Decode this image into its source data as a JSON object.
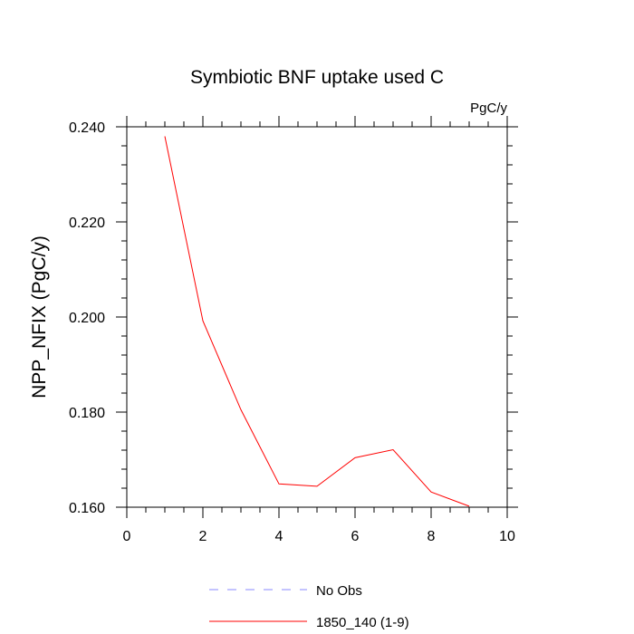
{
  "chart_data": {
    "type": "line",
    "title": "Symbiotic BNF uptake used C",
    "units_label": "PgC/y",
    "xlabel": "",
    "ylabel": "NPP_NFIX  (PgC/y)",
    "xlim": [
      0,
      10
    ],
    "ylim": [
      0.16,
      0.24
    ],
    "xticks": [
      0,
      2,
      4,
      6,
      8,
      10
    ],
    "xtick_labels": [
      "0",
      "2",
      "4",
      "6",
      "8",
      "10"
    ],
    "yticks": [
      0.16,
      0.18,
      0.2,
      0.22,
      0.24
    ],
    "ytick_labels": [
      "0.160",
      "0.180",
      "0.200",
      "0.220",
      "0.240"
    ],
    "grid": false,
    "legend_position": "bottom",
    "series": [
      {
        "name": "1850_140 (1-9)",
        "color": "#ff0000",
        "x": [
          1,
          2,
          3,
          4,
          5,
          6,
          7,
          8,
          9
        ],
        "y": [
          0.238,
          0.1992,
          0.1805,
          0.1649,
          0.1644,
          0.1704,
          0.1721,
          0.1632,
          0.1602
        ]
      }
    ],
    "legend": [
      {
        "label": "No Obs",
        "color": "#8888ff",
        "style": "dashed"
      },
      {
        "label": "1850_140 (1-9)",
        "color": "#ff0000",
        "style": "solid"
      }
    ]
  }
}
